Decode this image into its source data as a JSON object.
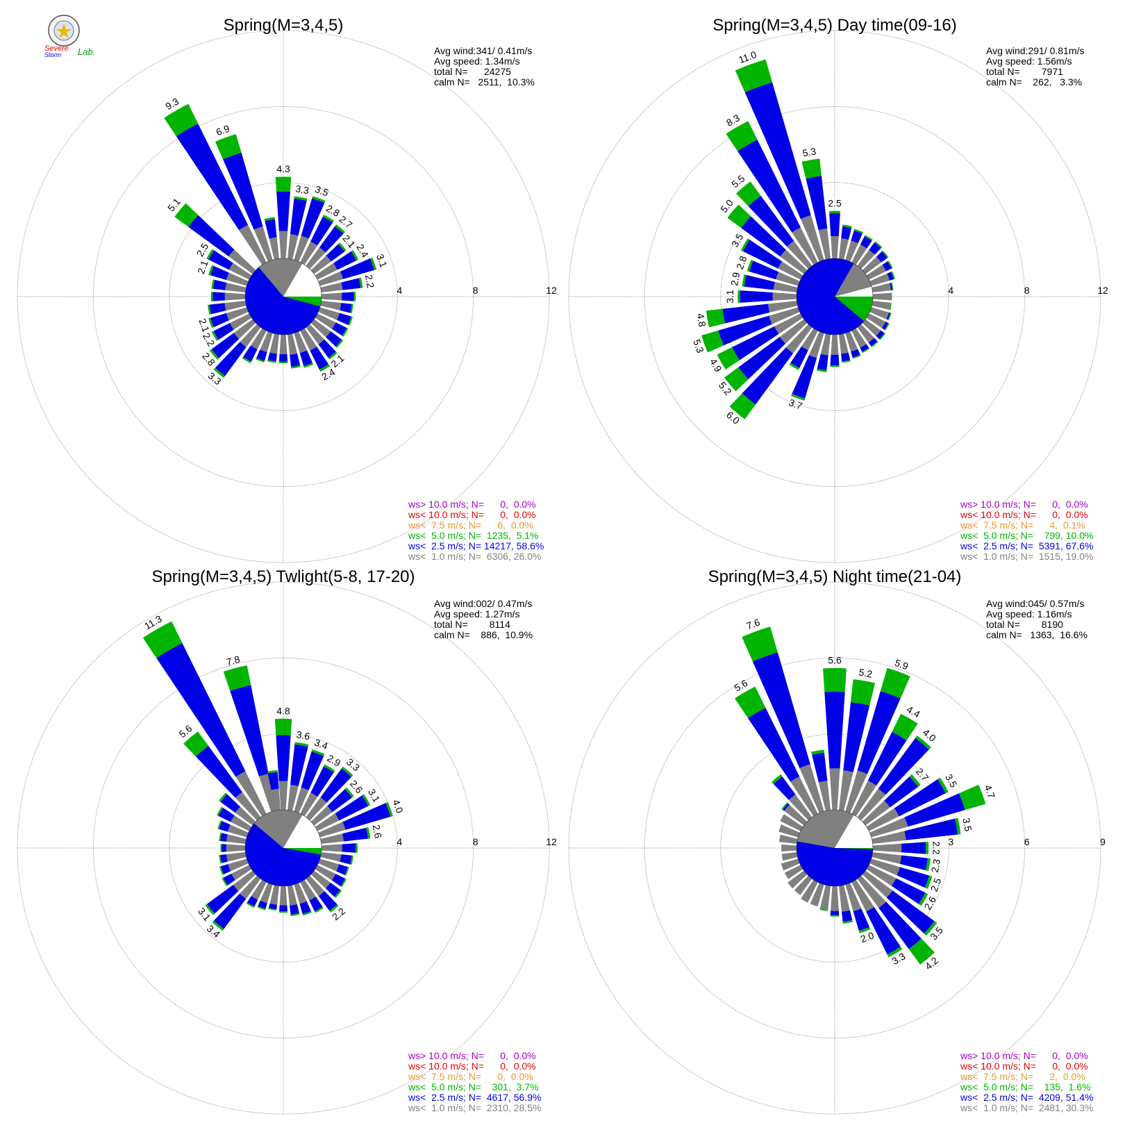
{
  "logo": {
    "text_line1": "Severe",
    "text_line2": "Storm",
    "text_line3": "Lab."
  },
  "chart_data": [
    {
      "type": "windrose",
      "title": "Spring(M=3,4,5)",
      "stats": [
        "Avg wind:341/ 0.41m/s",
        "Avg speed: 1.34m/s",
        "total N=      24275",
        "calm N=   2511,  10.3%"
      ],
      "ring_max": 12,
      "ring_ticks": [
        4,
        8,
        12
      ],
      "calm_angles_white": [
        30,
        90
      ],
      "calm_angles_green": [
        90,
        105
      ],
      "calm_angles_gray": [
        -40,
        30
      ],
      "bars": [
        {
          "dir": 0,
          "total": 4.3,
          "label": "4.3"
        },
        {
          "dir": 10,
          "total": 3.3,
          "label": "3.3"
        },
        {
          "dir": 20,
          "total": 3.5,
          "label": "3.5"
        },
        {
          "dir": 30,
          "total": 2.8,
          "label": "2.8"
        },
        {
          "dir": 40,
          "total": 2.7,
          "label": "2.7"
        },
        {
          "dir": 50,
          "total": 2.1,
          "label": "2.1"
        },
        {
          "dir": 60,
          "total": 2.4,
          "label": "2.4"
        },
        {
          "dir": 70,
          "total": 3.1,
          "label": "3.1"
        },
        {
          "dir": 80,
          "total": 2.2,
          "label": "2.2"
        },
        {
          "dir": 90,
          "total": 1.8,
          "label": ""
        },
        {
          "dir": 100,
          "total": 1.7,
          "label": ""
        },
        {
          "dir": 110,
          "total": 1.8,
          "label": ""
        },
        {
          "dir": 120,
          "total": 1.8,
          "label": ""
        },
        {
          "dir": 130,
          "total": 1.9,
          "label": ""
        },
        {
          "dir": 140,
          "total": 2.1,
          "label": "2.1"
        },
        {
          "dir": 150,
          "total": 2.4,
          "label": "2.4"
        },
        {
          "dir": 160,
          "total": 1.9,
          "label": ""
        },
        {
          "dir": 170,
          "total": 1.8,
          "label": ""
        },
        {
          "dir": 180,
          "total": 1.5,
          "label": ""
        },
        {
          "dir": 190,
          "total": 1.5,
          "label": ""
        },
        {
          "dir": 200,
          "total": 1.6,
          "label": ""
        },
        {
          "dir": 210,
          "total": 1.9,
          "label": ""
        },
        {
          "dir": 220,
          "total": 3.3,
          "label": "3.3"
        },
        {
          "dir": 230,
          "total": 2.8,
          "label": "2.8"
        },
        {
          "dir": 240,
          "total": 2.2,
          "label": "2.2"
        },
        {
          "dir": 250,
          "total": 2.1,
          "label": "2.1"
        },
        {
          "dir": 260,
          "total": 2.0,
          "label": ""
        },
        {
          "dir": 270,
          "total": 1.8,
          "label": ""
        },
        {
          "dir": 280,
          "total": 1.8,
          "label": ""
        },
        {
          "dir": 290,
          "total": 2.1,
          "label": "2.1"
        },
        {
          "dir": 300,
          "total": 2.5,
          "label": "2.5"
        },
        {
          "dir": 310,
          "total": 5.1,
          "label": "5.1"
        },
        {
          "dir": 330,
          "total": 9.3,
          "label": "9.3"
        },
        {
          "dir": 340,
          "total": 6.9,
          "label": "6.9"
        },
        {
          "dir": 350,
          "total": 2.2,
          "label": ""
        }
      ],
      "legend": [
        {
          "text": "ws> 10.0 m/s; N=      0,  0.0%",
          "color": "#a000c8"
        },
        {
          "text": "ws< 10.0 m/s; N=      0,  0.0%",
          "color": "#e60000"
        },
        {
          "text": "ws<  7.5 m/s; N=      6,  0.0%",
          "color": "#f09628"
        },
        {
          "text": "ws<  5.0 m/s; N=  1235,  5.1%",
          "color": "#00b400"
        },
        {
          "text": "ws<  2.5 m/s; N= 14217, 58.6%",
          "color": "#0000e6"
        },
        {
          "text": "ws<  1.0 m/s; N=  6306, 26.0%",
          "color": "#808080"
        }
      ]
    },
    {
      "type": "windrose",
      "title": "Spring(M=3,4,5) Day time(09-16)",
      "stats": [
        "Avg wind:291/ 0.81m/s",
        "Avg speed: 1.56m/s",
        "total N=        7971",
        "calm N=    262,   3.3%"
      ],
      "ring_max": 12,
      "ring_ticks": [
        4,
        8,
        12
      ],
      "calm_angles_white": [
        75,
        90
      ],
      "calm_angles_green": [
        90,
        130
      ],
      "calm_angles_gray": [
        30,
        75
      ],
      "bars": [
        {
          "dir": 0,
          "total": 2.5,
          "label": "2.5"
        },
        {
          "dir": 10,
          "total": 1.8,
          "label": ""
        },
        {
          "dir": 20,
          "total": 1.7,
          "label": ""
        },
        {
          "dir": 30,
          "total": 1.6,
          "label": ""
        },
        {
          "dir": 40,
          "total": 1.6,
          "label": ""
        },
        {
          "dir": 50,
          "total": 1.5,
          "label": ""
        },
        {
          "dir": 60,
          "total": 1.4,
          "label": ""
        },
        {
          "dir": 70,
          "total": 1.3,
          "label": ""
        },
        {
          "dir": 80,
          "total": 1.1,
          "label": ""
        },
        {
          "dir": 90,
          "total": 1.0,
          "label": ""
        },
        {
          "dir": 100,
          "total": 1.0,
          "label": ""
        },
        {
          "dir": 110,
          "total": 1.1,
          "label": ""
        },
        {
          "dir": 120,
          "total": 1.2,
          "label": ""
        },
        {
          "dir": 130,
          "total": 1.3,
          "label": ""
        },
        {
          "dir": 140,
          "total": 1.3,
          "label": ""
        },
        {
          "dir": 150,
          "total": 1.3,
          "label": ""
        },
        {
          "dir": 160,
          "total": 1.4,
          "label": ""
        },
        {
          "dir": 170,
          "total": 1.5,
          "label": ""
        },
        {
          "dir": 180,
          "total": 1.7,
          "label": ""
        },
        {
          "dir": 190,
          "total": 2.0,
          "label": ""
        },
        {
          "dir": 200,
          "total": 3.7,
          "label": "3.7"
        },
        {
          "dir": 210,
          "total": 2.3,
          "label": ""
        },
        {
          "dir": 220,
          "total": 6.0,
          "label": "6.0"
        },
        {
          "dir": 230,
          "total": 5.2,
          "label": "5.2"
        },
        {
          "dir": 240,
          "total": 4.9,
          "label": "4.9"
        },
        {
          "dir": 250,
          "total": 5.3,
          "label": "5.3"
        },
        {
          "dir": 260,
          "total": 4.8,
          "label": "4.8"
        },
        {
          "dir": 270,
          "total": 3.1,
          "label": "3.1"
        },
        {
          "dir": 280,
          "total": 2.9,
          "label": "2.9"
        },
        {
          "dir": 290,
          "total": 2.8,
          "label": "2.8"
        },
        {
          "dir": 300,
          "total": 3.5,
          "label": "3.5"
        },
        {
          "dir": 310,
          "total": 5.0,
          "label": "5.0"
        },
        {
          "dir": 320,
          "total": 5.5,
          "label": "5.5"
        },
        {
          "dir": 330,
          "total": 8.3,
          "label": "8.3"
        },
        {
          "dir": 340,
          "total": 11.0,
          "label": "11.0"
        },
        {
          "dir": 350,
          "total": 5.3,
          "label": "5.3"
        }
      ],
      "legend": [
        {
          "text": "ws> 10.0 m/s; N=      0,  0.0%",
          "color": "#a000c8"
        },
        {
          "text": "ws< 10.0 m/s; N=      0,  0.0%",
          "color": "#e60000"
        },
        {
          "text": "ws<  7.5 m/s; N=      4,  0.1%",
          "color": "#f09628"
        },
        {
          "text": "ws<  5.0 m/s; N=    799, 10.0%",
          "color": "#00b400"
        },
        {
          "text": "ws<  2.5 m/s; N=  5391, 67.6%",
          "color": "#0000e6"
        },
        {
          "text": "ws<  1.0 m/s; N=  1515, 19.0%",
          "color": "#808080"
        }
      ]
    },
    {
      "type": "windrose",
      "title": "Spring(M=3,4,5) Twlight(5-8, 17-20)",
      "stats": [
        "Avg wind:002/ 0.47m/s",
        "Avg speed: 1.27m/s",
        "total N=        8114",
        "calm N=    886,  10.9%"
      ],
      "ring_max": 12,
      "ring_ticks": [
        4,
        8,
        12
      ],
      "calm_angles_white": [
        30,
        90
      ],
      "calm_angles_green": [
        90,
        100
      ],
      "calm_angles_gray": [
        -50,
        30
      ],
      "bars": [
        {
          "dir": 0,
          "total": 4.8,
          "label": "4.8"
        },
        {
          "dir": 10,
          "total": 3.6,
          "label": "3.6"
        },
        {
          "dir": 20,
          "total": 3.4,
          "label": "3.4"
        },
        {
          "dir": 30,
          "total": 2.9,
          "label": "2.9"
        },
        {
          "dir": 40,
          "total": 3.3,
          "label": "3.3"
        },
        {
          "dir": 50,
          "total": 2.6,
          "label": "2.6"
        },
        {
          "dir": 60,
          "total": 3.1,
          "label": "3.1"
        },
        {
          "dir": 70,
          "total": 4.0,
          "label": "4.0"
        },
        {
          "dir": 80,
          "total": 2.6,
          "label": "2.6"
        },
        {
          "dir": 90,
          "total": 1.9,
          "label": ""
        },
        {
          "dir": 100,
          "total": 1.7,
          "label": ""
        },
        {
          "dir": 110,
          "total": 1.6,
          "label": ""
        },
        {
          "dir": 120,
          "total": 1.7,
          "label": ""
        },
        {
          "dir": 130,
          "total": 1.8,
          "label": ""
        },
        {
          "dir": 140,
          "total": 2.2,
          "label": "2.2"
        },
        {
          "dir": 150,
          "total": 1.8,
          "label": ""
        },
        {
          "dir": 160,
          "total": 1.7,
          "label": ""
        },
        {
          "dir": 170,
          "total": 1.6,
          "label": ""
        },
        {
          "dir": 180,
          "total": 1.4,
          "label": ""
        },
        {
          "dir": 190,
          "total": 1.3,
          "label": ""
        },
        {
          "dir": 200,
          "total": 1.4,
          "label": ""
        },
        {
          "dir": 210,
          "total": 1.5,
          "label": ""
        },
        {
          "dir": 220,
          "total": 3.4,
          "label": "3.4"
        },
        {
          "dir": 230,
          "total": 3.1,
          "label": "3.1"
        },
        {
          "dir": 240,
          "total": 1.6,
          "label": ""
        },
        {
          "dir": 250,
          "total": 1.5,
          "label": ""
        },
        {
          "dir": 260,
          "total": 1.4,
          "label": ""
        },
        {
          "dir": 270,
          "total": 1.3,
          "label": ""
        },
        {
          "dir": 280,
          "total": 1.4,
          "label": ""
        },
        {
          "dir": 290,
          "total": 1.6,
          "label": ""
        },
        {
          "dir": 300,
          "total": 1.9,
          "label": ""
        },
        {
          "dir": 310,
          "total": 2.2,
          "label": ""
        },
        {
          "dir": 320,
          "total": 5.6,
          "label": "5.6"
        },
        {
          "dir": 330,
          "total": 11.3,
          "label": "11.3"
        },
        {
          "dir": 345,
          "total": 7.8,
          "label": "7.8"
        },
        {
          "dir": 352,
          "total": 2.1,
          "label": ""
        }
      ],
      "legend": [
        {
          "text": "ws> 10.0 m/s; N=      0,  0.0%",
          "color": "#a000c8"
        },
        {
          "text": "ws< 10.0 m/s; N=      0,  0.0%",
          "color": "#e60000"
        },
        {
          "text": "ws<  7.5 m/s; N=      0,  0.0%",
          "color": "#f09628"
        },
        {
          "text": "ws<  5.0 m/s; N=    301,  3.7%",
          "color": "#00b400"
        },
        {
          "text": "ws<  2.5 m/s; N=  4617, 56.9%",
          "color": "#0000e6"
        },
        {
          "text": "ws<  1.0 m/s; N=  2310, 28.5%",
          "color": "#808080"
        }
      ]
    },
    {
      "type": "windrose",
      "title": "Spring(M=3,4,5) Night time(21-04)",
      "stats": [
        "Avg wind:045/ 0.57m/s",
        "Avg speed: 1.16m/s",
        "total N=        8190",
        "calm N=   1363,  16.6%"
      ],
      "ring_max": 9,
      "ring_ticks": [
        3,
        6,
        9
      ],
      "calm_angles_white": [
        30,
        90
      ],
      "calm_angles_green": [
        90,
        92
      ],
      "calm_angles_gray": [
        -80,
        30
      ],
      "bars": [
        {
          "dir": 0,
          "total": 5.6,
          "label": "5.6"
        },
        {
          "dir": 10,
          "total": 5.2,
          "label": "5.2"
        },
        {
          "dir": 20,
          "total": 5.9,
          "label": "5.9"
        },
        {
          "dir": 30,
          "total": 4.4,
          "label": "4.4"
        },
        {
          "dir": 40,
          "total": 4.0,
          "label": "4.0"
        },
        {
          "dir": 50,
          "total": 2.7,
          "label": "2.7"
        },
        {
          "dir": 60,
          "total": 3.5,
          "label": "3.5"
        },
        {
          "dir": 70,
          "total": 4.7,
          "label": "4.7"
        },
        {
          "dir": 80,
          "total": 3.5,
          "label": "3.5"
        },
        {
          "dir": 90,
          "total": 2.2,
          "label": "2.2"
        },
        {
          "dir": 100,
          "total": 2.3,
          "label": "2.3"
        },
        {
          "dir": 110,
          "total": 2.5,
          "label": "2.5"
        },
        {
          "dir": 120,
          "total": 2.6,
          "label": "2.6"
        },
        {
          "dir": 130,
          "total": 3.5,
          "label": "3.5"
        },
        {
          "dir": 140,
          "total": 4.2,
          "label": "4.2"
        },
        {
          "dir": 150,
          "total": 3.3,
          "label": "3.3"
        },
        {
          "dir": 160,
          "total": 2.0,
          "label": "2.0"
        },
        {
          "dir": 170,
          "total": 1.5,
          "label": ""
        },
        {
          "dir": 180,
          "total": 1.2,
          "label": ""
        },
        {
          "dir": 190,
          "total": 1.0,
          "label": ""
        },
        {
          "dir": 200,
          "total": 0.9,
          "label": ""
        },
        {
          "dir": 210,
          "total": 0.9,
          "label": ""
        },
        {
          "dir": 220,
          "total": 0.8,
          "label": ""
        },
        {
          "dir": 230,
          "total": 0.8,
          "label": ""
        },
        {
          "dir": 240,
          "total": 0.7,
          "label": ""
        },
        {
          "dir": 250,
          "total": 0.7,
          "label": ""
        },
        {
          "dir": 260,
          "total": 0.6,
          "label": ""
        },
        {
          "dir": 270,
          "total": 0.6,
          "label": ""
        },
        {
          "dir": 280,
          "total": 0.7,
          "label": ""
        },
        {
          "dir": 290,
          "total": 0.8,
          "label": ""
        },
        {
          "dir": 300,
          "total": 0.9,
          "label": ""
        },
        {
          "dir": 310,
          "total": 1.1,
          "label": ""
        },
        {
          "dir": 320,
          "total": 2.1,
          "label": ""
        },
        {
          "dir": 330,
          "total": 5.6,
          "label": "5.6"
        },
        {
          "dir": 340,
          "total": 7.6,
          "label": "7.6"
        },
        {
          "dir": 350,
          "total": 2.4,
          "label": ""
        }
      ],
      "legend": [
        {
          "text": "ws> 10.0 m/s; N=      0,  0.0%",
          "color": "#a000c8"
        },
        {
          "text": "ws< 10.0 m/s; N=      0,  0.0%",
          "color": "#e60000"
        },
        {
          "text": "ws<  7.5 m/s; N=      2,  0.0%",
          "color": "#f09628"
        },
        {
          "text": "ws<  5.0 m/s; N=    135,  1.6%",
          "color": "#00b400"
        },
        {
          "text": "ws<  2.5 m/s; N=  4209, 51.4%",
          "color": "#0000e6"
        },
        {
          "text": "ws<  1.0 m/s; N=  2481, 30.3%",
          "color": "#808080"
        }
      ]
    }
  ],
  "colors": {
    "gray": "#808080",
    "blue": "#0000e6",
    "green": "#00b400",
    "grid": "#888888"
  }
}
